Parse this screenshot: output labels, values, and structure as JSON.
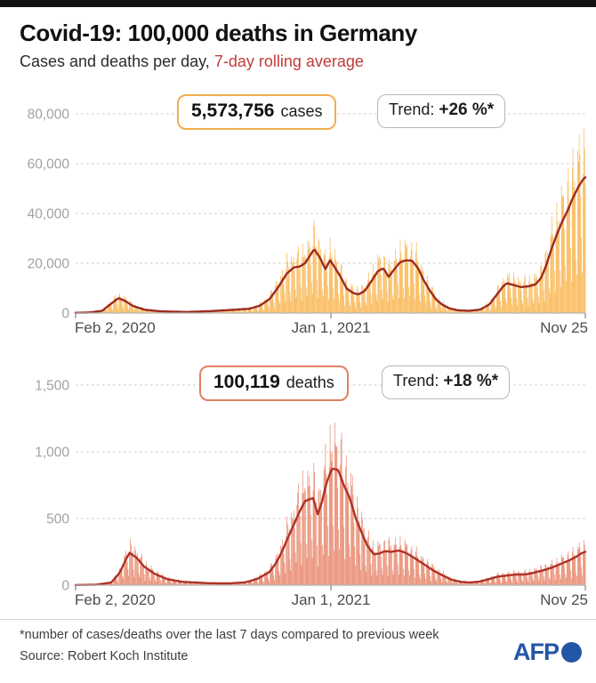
{
  "header": {
    "title": "Covid-19: 100,000 deaths in Germany",
    "subtitle_prefix": "Cases and deaths per day, ",
    "subtitle_highlight": "7-day rolling average"
  },
  "badges": {
    "cases": {
      "value": "5,573,756",
      "unit": "cases",
      "trend_prefix": "Trend:",
      "trend_value": "+26 %*"
    },
    "deaths": {
      "value": "100,119",
      "unit": "deaths",
      "trend_prefix": "Trend:",
      "trend_value": "+18 %*"
    }
  },
  "chart_data": [
    {
      "name": "cases",
      "type": "bar+line",
      "title": "5,573,756 cases",
      "trend": "Trend: +26 %*",
      "legend": "orange bars = daily new cases, dark red line = 7-day rolling average",
      "x_ticks": [
        "Feb 2, 2020",
        "Jan 1, 2021",
        "Nov 25"
      ],
      "x_tick_pos": [
        0,
        0.501,
        1
      ],
      "x_span_days": 662,
      "ylim": [
        0,
        91000
      ],
      "grid": true,
      "y_ticks": [
        {
          "value": 0,
          "label": "0"
        },
        {
          "value": 20000,
          "label": "20,000"
        },
        {
          "value": 40000,
          "label": "40,000"
        },
        {
          "value": 60000,
          "label": "60,000"
        },
        {
          "value": 80000,
          "label": "80,000"
        }
      ],
      "bar_color": "#f8ae3e",
      "line_color": "#9c2a21",
      "line_points": [
        [
          0,
          100
        ],
        [
          2.6,
          200
        ],
        [
          5.2,
          900
        ],
        [
          6.8,
          3500
        ],
        [
          8.4,
          6000
        ],
        [
          9.6,
          5000
        ],
        [
          11.3,
          2800
        ],
        [
          13.6,
          1300
        ],
        [
          16.6,
          700
        ],
        [
          21.8,
          420
        ],
        [
          26.2,
          750
        ],
        [
          30.9,
          1300
        ],
        [
          34,
          1700
        ],
        [
          36.1,
          2900
        ],
        [
          38,
          5500
        ],
        [
          39.8,
          10500
        ],
        [
          41.4,
          15800
        ],
        [
          42.8,
          18300
        ],
        [
          44,
          18700
        ],
        [
          45,
          20000
        ],
        [
          45.9,
          22800
        ],
        [
          46.8,
          25700
        ],
        [
          48,
          22000
        ],
        [
          49,
          17600
        ],
        [
          49.9,
          21200
        ],
        [
          50.8,
          18500
        ],
        [
          52,
          14500
        ],
        [
          53.2,
          9800
        ],
        [
          54.5,
          8000
        ],
        [
          55.5,
          7500
        ],
        [
          56.7,
          8800
        ],
        [
          58.1,
          13000
        ],
        [
          59.3,
          16800
        ],
        [
          60.4,
          18000
        ],
        [
          61.4,
          14500
        ],
        [
          62.5,
          17500
        ],
        [
          63.7,
          20500
        ],
        [
          64.9,
          21200
        ],
        [
          66,
          21000
        ],
        [
          67.2,
          18000
        ],
        [
          68.2,
          13500
        ],
        [
          69.5,
          9000
        ],
        [
          70.7,
          5500
        ],
        [
          71.9,
          3400
        ],
        [
          73.3,
          1900
        ],
        [
          75,
          1100
        ],
        [
          77.3,
          900
        ],
        [
          79.4,
          1400
        ],
        [
          81.2,
          3500
        ],
        [
          82.5,
          7000
        ],
        [
          83.8,
          10500
        ],
        [
          84.6,
          12000
        ],
        [
          86,
          11200
        ],
        [
          87.4,
          10400
        ],
        [
          89,
          10800
        ],
        [
          90.2,
          11500
        ],
        [
          91.3,
          14000
        ],
        [
          92.3,
          19000
        ],
        [
          93.4,
          26000
        ],
        [
          94.4,
          31500
        ],
        [
          95.4,
          36500
        ],
        [
          96.5,
          41000
        ],
        [
          97.5,
          46000
        ],
        [
          98.6,
          50500
        ],
        [
          99.5,
          53500
        ],
        [
          100,
          54500
        ]
      ]
    },
    {
      "name": "deaths",
      "type": "bar+line",
      "title": "100,119 deaths",
      "trend": "Trend: +18 %*",
      "legend": "salmon bars = daily deaths, dark red line = 7-day rolling average",
      "x_ticks": [
        "Feb 2, 2020",
        "Jan 1, 2021",
        "Nov 25"
      ],
      "x_tick_pos": [
        0,
        0.501,
        1
      ],
      "x_span_days": 662,
      "ylim": [
        0,
        1720
      ],
      "grid": true,
      "y_ticks": [
        {
          "value": 0,
          "label": "0"
        },
        {
          "value": 500,
          "label": "500"
        },
        {
          "value": 1000,
          "label": "1,000"
        },
        {
          "value": 1500,
          "label": "1,500"
        }
      ],
      "bar_color": "#e57a5c",
      "line_color": "#ae3226",
      "line_points": [
        [
          0,
          1
        ],
        [
          4,
          3
        ],
        [
          7,
          20
        ],
        [
          8.6,
          90
        ],
        [
          9.9,
          195
        ],
        [
          10.6,
          242
        ],
        [
          12,
          205
        ],
        [
          13.4,
          140
        ],
        [
          15.5,
          85
        ],
        [
          18,
          45
        ],
        [
          20.9,
          25
        ],
        [
          26,
          15
        ],
        [
          30,
          13
        ],
        [
          33,
          20
        ],
        [
          34,
          28
        ],
        [
          35.8,
          50
        ],
        [
          38,
          98
        ],
        [
          39.3,
          164
        ],
        [
          40.5,
          253
        ],
        [
          41.5,
          342
        ],
        [
          42.8,
          453
        ],
        [
          43.8,
          540
        ],
        [
          45,
          631
        ],
        [
          46.6,
          653
        ],
        [
          47.5,
          531
        ],
        [
          48.3,
          620
        ],
        [
          49.2,
          764
        ],
        [
          50.3,
          875
        ],
        [
          51.5,
          864
        ],
        [
          52.7,
          742
        ],
        [
          53.8,
          653
        ],
        [
          55,
          498
        ],
        [
          56.2,
          387
        ],
        [
          57.2,
          298
        ],
        [
          58.5,
          231
        ],
        [
          59.7,
          238
        ],
        [
          60.6,
          255
        ],
        [
          62,
          250
        ],
        [
          63.4,
          260
        ],
        [
          64.6,
          245
        ],
        [
          65.8,
          220
        ],
        [
          67.2,
          185
        ],
        [
          68.6,
          150
        ],
        [
          70.2,
          110
        ],
        [
          71.9,
          75
        ],
        [
          73.8,
          40
        ],
        [
          75.6,
          25
        ],
        [
          77.3,
          20
        ],
        [
          79.1,
          26
        ],
        [
          80.8,
          42
        ],
        [
          82.9,
          65
        ],
        [
          84.6,
          72
        ],
        [
          86.4,
          80
        ],
        [
          88.1,
          80
        ],
        [
          89.9,
          93
        ],
        [
          91.6,
          110
        ],
        [
          93.4,
          131
        ],
        [
          95.1,
          158
        ],
        [
          96.9,
          187
        ],
        [
          98.3,
          215
        ],
        [
          99.3,
          240
        ],
        [
          100,
          250
        ]
      ]
    }
  ],
  "footer": {
    "note": "*number of cases/deaths over the last 7 days compared to previous week",
    "source": "Source: Robert Koch Institute",
    "logo_text": "AFP"
  },
  "colors": {
    "accent_red": "#c23b3b",
    "cases_badge_border": "#f1ae4e",
    "deaths_badge_border": "#e08063",
    "afp_blue": "#2456a6",
    "grid": "#c8c8c8"
  }
}
